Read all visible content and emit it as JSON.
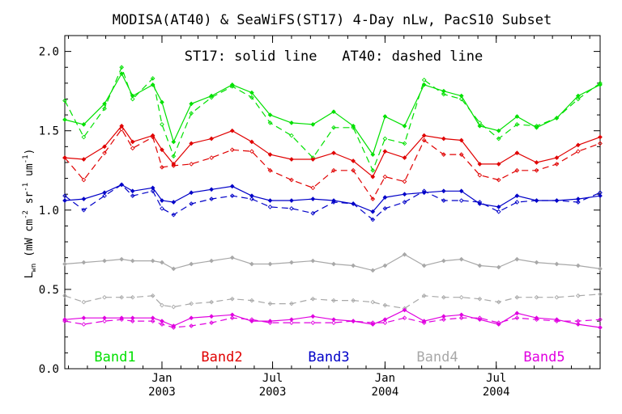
{
  "chart_data": {
    "type": "line",
    "title": "MODISA(AT40) & SeaWiFS(ST17) 4-Day nLw, PacS10 Subset",
    "annotation": "ST17: solid line   AT40: dashed line",
    "ylabel": "L_wn (mW cm^-2 sr^-1 um^-1)",
    "ylabel_parts": {
      "main": "L",
      "sub": "wn",
      "unit": "(mW cm",
      "e1": "-2",
      "sr": " sr",
      "e2": "-1",
      "um": " um",
      "e3": "-1",
      "close": ")"
    },
    "ylim": [
      0.0,
      2.1
    ],
    "yticks": [
      0.0,
      0.5,
      1.0,
      1.5,
      2.0
    ],
    "ytick_labels": [
      "0.0",
      "0.5",
      "1.0",
      "1.5",
      "2.0"
    ],
    "xlim": [
      "2002-07-26",
      "2004-12-18"
    ],
    "xticks": [
      {
        "date": "2003-01-01",
        "month": "Jan",
        "year": "2003"
      },
      {
        "date": "2003-07-01",
        "month": "Jul",
        "year": "2003"
      },
      {
        "date": "2004-01-01",
        "month": "Jan",
        "year": "2004"
      },
      {
        "date": "2004-07-01",
        "month": "Jul",
        "year": "2004"
      }
    ],
    "dates": [
      "2002-07-26",
      "2002-08-26",
      "2002-09-29",
      "2002-10-27",
      "2002-11-14",
      "2002-12-17",
      "2003-01-01",
      "2003-01-20",
      "2003-02-18",
      "2003-03-23",
      "2003-04-26",
      "2003-05-28",
      "2003-06-27",
      "2003-08-01",
      "2003-09-05",
      "2003-10-09",
      "2003-11-10",
      "2003-12-12",
      "2004-01-01",
      "2004-02-02",
      "2004-03-05",
      "2004-04-06",
      "2004-05-05",
      "2004-06-04",
      "2004-07-05",
      "2004-08-04",
      "2004-09-05",
      "2004-10-08",
      "2004-11-12",
      "2004-12-18"
    ],
    "series": [
      {
        "name": "Band1",
        "color": "#00e000",
        "style": "solid",
        "values": [
          1.57,
          1.54,
          1.67,
          1.86,
          1.72,
          1.79,
          1.68,
          1.43,
          1.67,
          1.72,
          1.79,
          1.74,
          1.6,
          1.55,
          1.54,
          1.62,
          1.53,
          1.35,
          1.59,
          1.53,
          1.79,
          1.75,
          1.72,
          1.53,
          1.5,
          1.59,
          1.52,
          1.58,
          1.72,
          1.79
        ]
      },
      {
        "name": "Band1",
        "color": "#00e000",
        "style": "dashed",
        "values": [
          1.69,
          1.46,
          1.64,
          1.9,
          1.7,
          1.83,
          1.54,
          1.34,
          1.61,
          1.71,
          1.78,
          1.71,
          1.55,
          1.47,
          1.33,
          1.52,
          1.52,
          1.25,
          1.45,
          1.42,
          1.82,
          1.73,
          1.7,
          1.55,
          1.45,
          1.54,
          1.53,
          1.58,
          1.7,
          1.8
        ]
      },
      {
        "name": "Band2",
        "color": "#e00000",
        "style": "solid",
        "values": [
          1.33,
          1.32,
          1.4,
          1.53,
          1.43,
          1.47,
          1.38,
          1.29,
          1.42,
          1.45,
          1.5,
          1.43,
          1.35,
          1.32,
          1.32,
          1.36,
          1.31,
          1.21,
          1.37,
          1.33,
          1.47,
          1.45,
          1.44,
          1.29,
          1.29,
          1.36,
          1.3,
          1.33,
          1.41,
          1.46
        ]
      },
      {
        "name": "Band2",
        "color": "#e00000",
        "style": "dashed",
        "values": [
          1.33,
          1.19,
          1.36,
          1.51,
          1.39,
          1.46,
          1.27,
          1.28,
          1.29,
          1.33,
          1.38,
          1.37,
          1.25,
          1.19,
          1.14,
          1.25,
          1.25,
          1.07,
          1.21,
          1.18,
          1.44,
          1.35,
          1.35,
          1.22,
          1.19,
          1.25,
          1.25,
          1.29,
          1.37,
          1.42
        ]
      },
      {
        "name": "Band3",
        "color": "#0000c8",
        "style": "solid",
        "values": [
          1.06,
          1.07,
          1.11,
          1.16,
          1.12,
          1.14,
          1.06,
          1.05,
          1.11,
          1.13,
          1.15,
          1.09,
          1.06,
          1.06,
          1.07,
          1.06,
          1.04,
          0.99,
          1.08,
          1.1,
          1.11,
          1.12,
          1.12,
          1.04,
          1.02,
          1.09,
          1.06,
          1.06,
          1.07,
          1.09
        ]
      },
      {
        "name": "Band3",
        "color": "#0000c8",
        "style": "dashed",
        "values": [
          1.09,
          1.0,
          1.09,
          1.16,
          1.09,
          1.12,
          1.01,
          0.97,
          1.04,
          1.07,
          1.09,
          1.07,
          1.02,
          1.01,
          0.98,
          1.05,
          1.04,
          0.94,
          1.01,
          1.05,
          1.12,
          1.06,
          1.06,
          1.05,
          0.99,
          1.05,
          1.06,
          1.06,
          1.05,
          1.11
        ]
      },
      {
        "name": "Band4",
        "color": "#a8a8a8",
        "style": "solid",
        "values": [
          0.66,
          0.67,
          0.68,
          0.69,
          0.68,
          0.68,
          0.67,
          0.63,
          0.66,
          0.68,
          0.7,
          0.66,
          0.66,
          0.67,
          0.68,
          0.66,
          0.65,
          0.62,
          0.65,
          0.72,
          0.65,
          0.68,
          0.69,
          0.65,
          0.64,
          0.69,
          0.67,
          0.66,
          0.65,
          0.63
        ]
      },
      {
        "name": "Band4",
        "color": "#a8a8a8",
        "style": "dashed",
        "values": [
          0.46,
          0.42,
          0.45,
          0.45,
          0.45,
          0.46,
          0.4,
          0.39,
          0.41,
          0.42,
          0.44,
          0.43,
          0.41,
          0.41,
          0.44,
          0.43,
          0.43,
          0.42,
          0.4,
          0.38,
          0.46,
          0.45,
          0.45,
          0.44,
          0.42,
          0.45,
          0.45,
          0.45,
          0.46,
          0.47
        ]
      },
      {
        "name": "Band5",
        "color": "#e000e0",
        "style": "solid",
        "values": [
          0.31,
          0.32,
          0.32,
          0.32,
          0.32,
          0.32,
          0.3,
          0.27,
          0.32,
          0.33,
          0.34,
          0.3,
          0.3,
          0.31,
          0.33,
          0.31,
          0.3,
          0.28,
          0.31,
          0.37,
          0.3,
          0.33,
          0.34,
          0.31,
          0.28,
          0.35,
          0.32,
          0.31,
          0.28,
          0.26
        ]
      },
      {
        "name": "Band5",
        "color": "#e000e0",
        "style": "dashed",
        "values": [
          0.3,
          0.28,
          0.3,
          0.31,
          0.3,
          0.3,
          0.28,
          0.26,
          0.27,
          0.29,
          0.32,
          0.31,
          0.29,
          0.29,
          0.29,
          0.29,
          0.3,
          0.29,
          0.29,
          0.32,
          0.29,
          0.31,
          0.32,
          0.32,
          0.29,
          0.32,
          0.31,
          0.3,
          0.3,
          0.31
        ]
      }
    ],
    "legend": [
      {
        "label": "Band1",
        "color": "#00e000"
      },
      {
        "label": "Band2",
        "color": "#e00000"
      },
      {
        "label": "Band3",
        "color": "#0000c8"
      },
      {
        "label": "Band4",
        "color": "#a8a8a8"
      },
      {
        "label": "Band5",
        "color": "#e000e0"
      }
    ],
    "legend_placement": "bottom inside plot",
    "grid": false
  }
}
